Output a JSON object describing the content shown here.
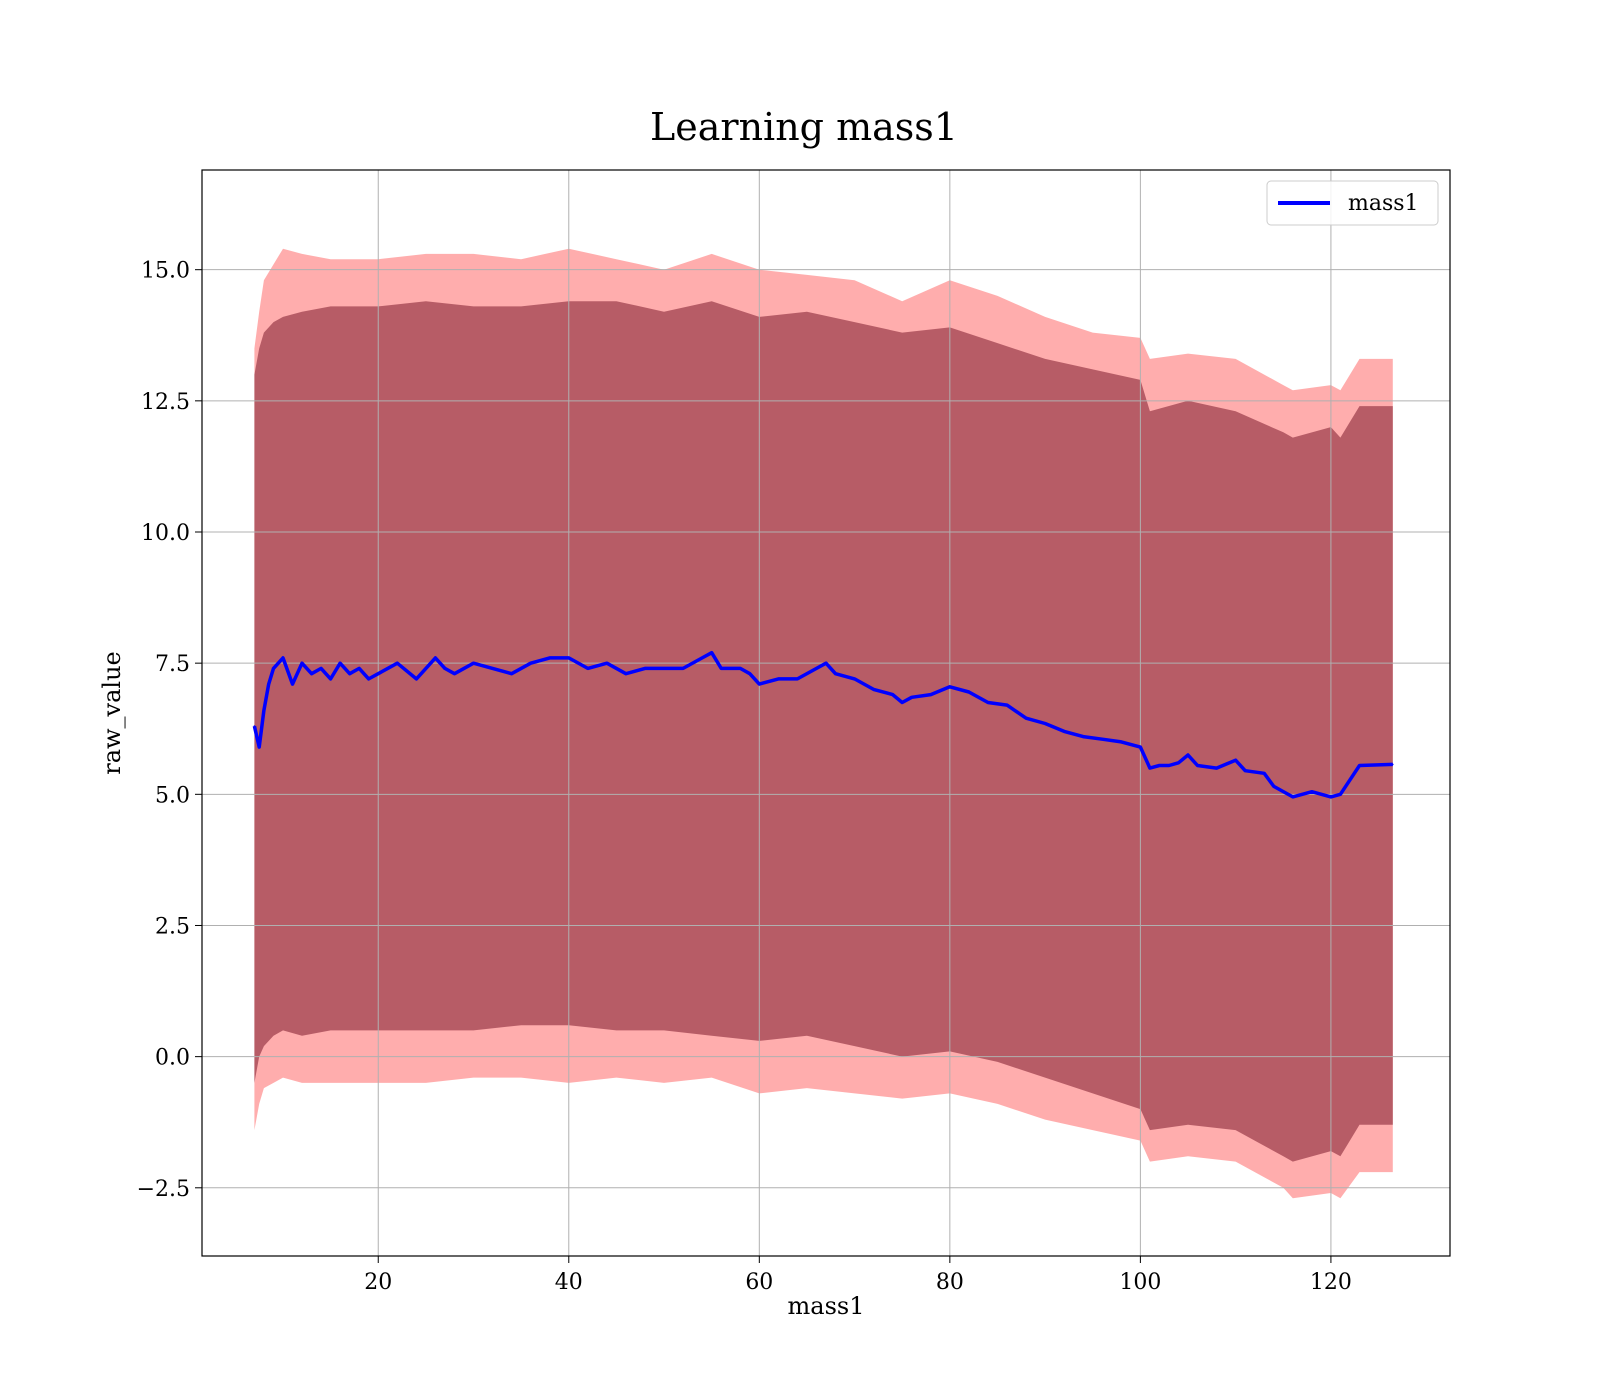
{
  "chart_data": {
    "type": "line",
    "title": "Learning mass1",
    "xlabel": "mass1",
    "ylabel": "raw_value",
    "xlim": [
      1.5,
      132.5
    ],
    "ylim": [
      -3.8,
      16.9
    ],
    "xticks": [
      20,
      40,
      60,
      80,
      100,
      120
    ],
    "xtick_labels": [
      "20",
      "40",
      "60",
      "80",
      "100",
      "120"
    ],
    "yticks": [
      -2.5,
      0.0,
      2.5,
      5.0,
      7.5,
      10.0,
      12.5,
      15.0
    ],
    "ytick_labels": [
      "−2.5",
      "0.0",
      "2.5",
      "5.0",
      "7.5",
      "10.0",
      "12.5",
      "15.0"
    ],
    "grid": true,
    "legend": {
      "position": "top-right",
      "entries": [
        "mass1"
      ]
    },
    "colors": {
      "line": "#0000ff",
      "band": "#ff0000",
      "band_inner": "#8b2a3a"
    },
    "series": [
      {
        "name": "mass1",
        "x": [
          7.0,
          7.5,
          8.0,
          8.5,
          9.0,
          10.0,
          11.0,
          12.0,
          13.0,
          14.0,
          15.0,
          16.0,
          17.0,
          18.0,
          19.0,
          20.0,
          22.0,
          24.0,
          26.0,
          27.0,
          28.0,
          30.0,
          32.0,
          34.0,
          36.0,
          38.0,
          40.0,
          42.0,
          44.0,
          46.0,
          48.0,
          50.0,
          52.0,
          54.0,
          55.0,
          56.0,
          58.0,
          59.0,
          60.0,
          62.0,
          64.0,
          66.0,
          67.0,
          68.0,
          70.0,
          72.0,
          74.0,
          75.0,
          76.0,
          78.0,
          80.0,
          82.0,
          84.0,
          86.0,
          88.0,
          90.0,
          92.0,
          94.0,
          96.0,
          98.0,
          100.0,
          101.0,
          102.0,
          103.0,
          104.0,
          105.0,
          106.0,
          108.0,
          110.0,
          111.0,
          113.0,
          114.0,
          116.0,
          118.0,
          120.0,
          121.0,
          123.0,
          126.5
        ],
        "values": [
          6.3,
          5.9,
          6.6,
          7.1,
          7.4,
          7.6,
          7.1,
          7.5,
          7.3,
          7.4,
          7.2,
          7.5,
          7.3,
          7.4,
          7.2,
          7.3,
          7.5,
          7.2,
          7.6,
          7.4,
          7.3,
          7.5,
          7.4,
          7.3,
          7.5,
          7.6,
          7.6,
          7.4,
          7.5,
          7.3,
          7.4,
          7.4,
          7.4,
          7.6,
          7.7,
          7.4,
          7.4,
          7.3,
          7.1,
          7.2,
          7.2,
          7.4,
          7.5,
          7.3,
          7.2,
          7.0,
          6.9,
          6.75,
          6.85,
          6.9,
          7.05,
          6.95,
          6.75,
          6.7,
          6.45,
          6.35,
          6.2,
          6.1,
          6.05,
          6.0,
          5.9,
          5.5,
          5.55,
          5.55,
          5.6,
          5.75,
          5.55,
          5.5,
          5.65,
          5.45,
          5.4,
          5.15,
          4.95,
          5.05,
          4.95,
          5.0,
          5.55,
          5.57
        ]
      }
    ],
    "bands": [
      {
        "name": "outer",
        "x": [
          7.0,
          7.5,
          8.0,
          9.0,
          10.0,
          12.0,
          15.0,
          20.0,
          25.0,
          30.0,
          35.0,
          40.0,
          45.0,
          50.0,
          55.0,
          60.0,
          65.0,
          70.0,
          75.0,
          80.0,
          85.0,
          90.0,
          95.0,
          100.0,
          101.0,
          105.0,
          110.0,
          115.0,
          116.0,
          120.0,
          121.0,
          123.0,
          126.5
        ],
        "upper": [
          13.5,
          14.2,
          14.8,
          15.1,
          15.4,
          15.3,
          15.2,
          15.2,
          15.3,
          15.3,
          15.2,
          15.4,
          15.2,
          15.0,
          15.3,
          15.0,
          14.9,
          14.8,
          14.4,
          14.8,
          14.5,
          14.1,
          13.8,
          13.7,
          13.3,
          13.4,
          13.3,
          12.8,
          12.7,
          12.8,
          12.7,
          13.3,
          13.3
        ],
        "lower": [
          -1.4,
          -0.9,
          -0.6,
          -0.5,
          -0.4,
          -0.5,
          -0.5,
          -0.5,
          -0.5,
          -0.4,
          -0.4,
          -0.5,
          -0.4,
          -0.5,
          -0.4,
          -0.7,
          -0.6,
          -0.7,
          -0.8,
          -0.7,
          -0.9,
          -1.2,
          -1.4,
          -1.6,
          -2.0,
          -1.9,
          -2.0,
          -2.5,
          -2.7,
          -2.6,
          -2.7,
          -2.2,
          -2.2
        ]
      },
      {
        "name": "inner",
        "x": [
          7.0,
          7.5,
          8.0,
          9.0,
          10.0,
          12.0,
          15.0,
          20.0,
          25.0,
          30.0,
          35.0,
          40.0,
          45.0,
          50.0,
          55.0,
          60.0,
          65.0,
          70.0,
          75.0,
          80.0,
          85.0,
          90.0,
          95.0,
          100.0,
          101.0,
          105.0,
          110.0,
          115.0,
          116.0,
          120.0,
          121.0,
          123.0,
          126.5
        ],
        "upper": [
          13.0,
          13.5,
          13.8,
          14.0,
          14.1,
          14.2,
          14.3,
          14.3,
          14.4,
          14.3,
          14.3,
          14.4,
          14.4,
          14.2,
          14.4,
          14.1,
          14.2,
          14.0,
          13.8,
          13.9,
          13.6,
          13.3,
          13.1,
          12.9,
          12.3,
          12.5,
          12.3,
          11.9,
          11.8,
          12.0,
          11.8,
          12.4,
          12.4
        ],
        "lower": [
          -0.5,
          0.0,
          0.2,
          0.4,
          0.5,
          0.4,
          0.5,
          0.5,
          0.5,
          0.5,
          0.6,
          0.6,
          0.5,
          0.5,
          0.4,
          0.3,
          0.4,
          0.2,
          0.0,
          0.1,
          -0.1,
          -0.4,
          -0.7,
          -1.0,
          -1.4,
          -1.3,
          -1.4,
          -1.9,
          -2.0,
          -1.8,
          -1.9,
          -1.3,
          -1.3
        ]
      }
    ]
  }
}
